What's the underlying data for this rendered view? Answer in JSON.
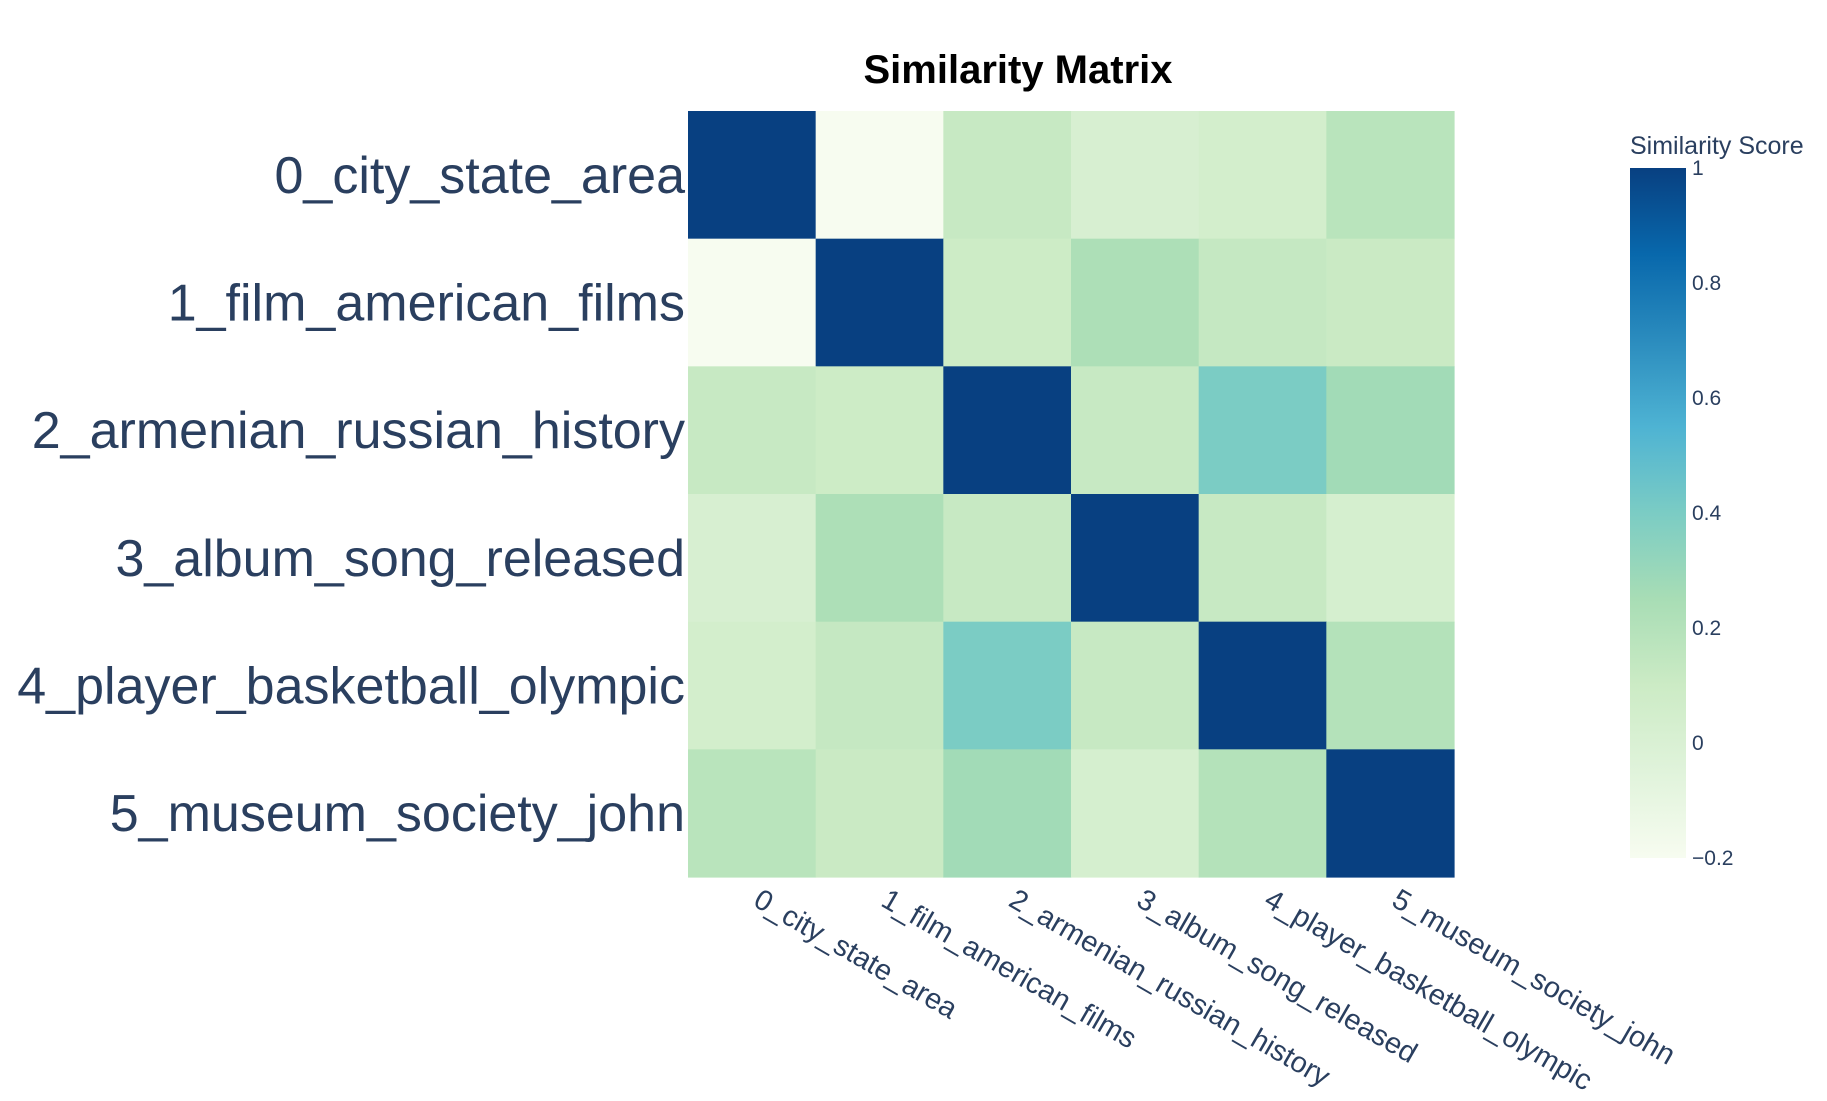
{
  "chart_data": {
    "type": "heatmap",
    "title": "Similarity Matrix",
    "x_labels": [
      "0_city_state_area",
      "1_film_american_films",
      "2_armenian_russian_history",
      "3_album_song_released",
      "4_player_basketball_olympic",
      "5_museum_society_john"
    ],
    "y_labels": [
      "0_city_state_area",
      "1_film_american_films",
      "2_armenian_russian_history",
      "3_album_song_released",
      "4_player_basketball_olympic",
      "5_museum_society_john"
    ],
    "values": [
      [
        1.0,
        -0.2,
        0.12,
        0.02,
        0.05,
        0.18
      ],
      [
        -0.2,
        1.0,
        0.09,
        0.23,
        0.13,
        0.11
      ],
      [
        0.12,
        0.09,
        1.0,
        0.12,
        0.4,
        0.27
      ],
      [
        0.02,
        0.23,
        0.12,
        1.0,
        0.12,
        0.03
      ],
      [
        0.05,
        0.13,
        0.4,
        0.12,
        1.0,
        0.2
      ],
      [
        0.18,
        0.11,
        0.27,
        0.03,
        0.2,
        1.0
      ]
    ],
    "colorscale": {
      "name": "GnBu",
      "stops": [
        "#f7fcf0",
        "#e0f3db",
        "#ccebc5",
        "#a8ddb5",
        "#7bccc4",
        "#4eb3d3",
        "#2b8cbe",
        "#0868ac",
        "#084081"
      ]
    },
    "zmin": -0.2,
    "zmax": 1,
    "colorbar": {
      "title": "Similarity Score",
      "ticks": [
        1,
        0.8,
        0.6,
        0.4,
        0.2,
        0
      ],
      "tick_labels": [
        "1",
        "0.8",
        "0.6",
        "0.4",
        "0.2",
        "0"
      ],
      "bottom_label": "−0.2",
      "bottom_value": -0.2
    },
    "x_tick_angle": 30
  }
}
